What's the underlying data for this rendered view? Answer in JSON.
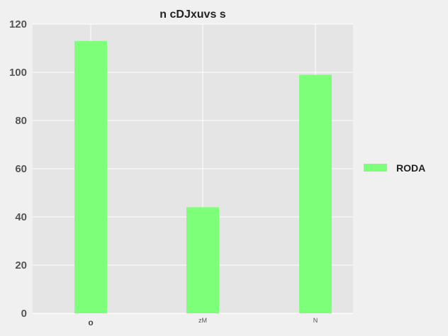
{
  "chart_data": {
    "type": "bar",
    "title": "n cDJxuvs s",
    "xlabel": "",
    "ylabel": "",
    "categories": [
      "o",
      "zM",
      "N"
    ],
    "series": [
      {
        "name": "RODA",
        "values": [
          113,
          44,
          99
        ],
        "color": "#7dff7a"
      }
    ],
    "ylim": [
      0,
      120
    ],
    "yticks": [
      0,
      20,
      40,
      60,
      80,
      100,
      120
    ],
    "grid": true,
    "legend_position": "right",
    "plot_background": "#e5e5e5",
    "grid_color": "#ffffff"
  }
}
